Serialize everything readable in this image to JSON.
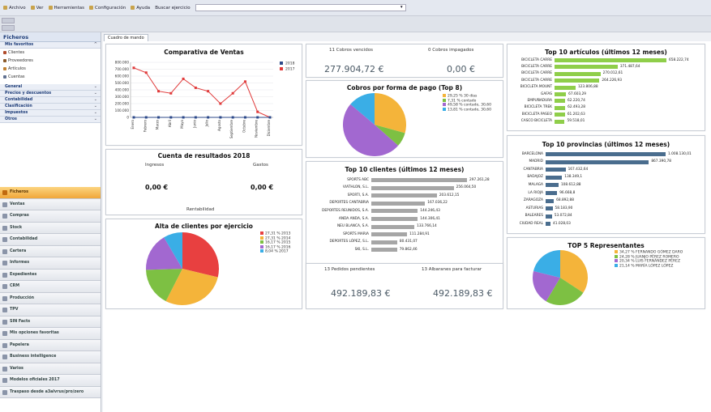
{
  "menu": {
    "archivo": "Archivo",
    "ver": "Ver",
    "herramientas": "Herramientas",
    "configuracion": "Configuración",
    "ayuda": "Ayuda",
    "buscar_label": "Buscar ejercicio",
    "search_value": ""
  },
  "sidebar": {
    "title": "Ficheros",
    "favorites_label": "Mis favoritos",
    "items": [
      {
        "label": "Clientes",
        "color": "#b04a2a"
      },
      {
        "label": "Proveedores",
        "color": "#8a5a2a"
      },
      {
        "label": "Artículos",
        "color": "#c08030"
      },
      {
        "label": "Cuentas",
        "color": "#607090"
      }
    ],
    "sections": [
      "General",
      "Precios y descuentos",
      "Contabilidad",
      "Clasificación",
      "Impuestos",
      "Otros"
    ],
    "modules": [
      {
        "label": "Ficheros",
        "active": true
      },
      {
        "label": "Ventas",
        "active": false
      },
      {
        "label": "Compras",
        "active": false
      },
      {
        "label": "Stock",
        "active": false
      },
      {
        "label": "Contabilidad",
        "active": false
      },
      {
        "label": "Cartera",
        "active": false
      },
      {
        "label": "Informes",
        "active": false
      },
      {
        "label": "Expedientes",
        "active": false
      },
      {
        "label": "CRM",
        "active": false
      },
      {
        "label": "Producción",
        "active": false
      },
      {
        "label": "TPV",
        "active": false
      },
      {
        "label": "SIN Facts",
        "active": false
      },
      {
        "label": "Mis opciones favoritas",
        "active": false
      },
      {
        "label": "Papelera",
        "active": false
      },
      {
        "label": "Business intelligence",
        "active": false
      },
      {
        "label": "Varios",
        "active": false
      },
      {
        "label": "Modelos oficiales 2017",
        "active": false
      },
      {
        "label": "Traspaso desde a3alvrus/pro/zero",
        "active": false
      }
    ]
  },
  "tab_label": "Cuadro de mando",
  "sales": {
    "title": "Comparativa de Ventas",
    "legend": [
      "2018",
      "2017"
    ],
    "colors": {
      "s2018": "#2d4a8a",
      "s2017": "#e03a3a"
    }
  },
  "cobros": {
    "left_label": "11  Cobros vencidos",
    "left_value": "277.904,72 €",
    "right_label": "0  Cobros impagados",
    "right_value": "0,00 €"
  },
  "cobros_pago": {
    "title": "Cobros por forma de pago (Top 8)",
    "legend": [
      {
        "pct": "29,25 %",
        "label": "30 días",
        "color": "#f4b43a"
      },
      {
        "pct": "7,31 %",
        "label": "contado",
        "color": "#7dc043"
      },
      {
        "pct": "49,58 %",
        "label": "contado, 30,60",
        "color": "#a268d0"
      },
      {
        "pct": "13,81 %",
        "label": "contado, 30,60",
        "color": "#3aaee6"
      }
    ]
  },
  "resultados": {
    "title": "Cuenta de resultados 2018",
    "ingresos_label": "Ingresos",
    "gastos_label": "Gastos",
    "ingresos_value": "0,00 €",
    "gastos_value": "0,00 €",
    "rentabilidad_label": "Rentabilidad"
  },
  "top_clientes": {
    "title": "Top 10 clientes (últimos 12 meses)"
  },
  "alta_clientes": {
    "title": "Alta de clientes por ejercicio",
    "legend": [
      {
        "pct": "27,31 %",
        "label": "2013",
        "color": "#e84040"
      },
      {
        "pct": "27,31 %",
        "label": "2014",
        "color": "#f4b43a"
      },
      {
        "pct": "16,17 %",
        "label": "2015",
        "color": "#7dc043"
      },
      {
        "pct": "16,17 %",
        "label": "2016",
        "color": "#a268d0"
      },
      {
        "pct": "8,04 %",
        "label": "2017",
        "color": "#3aaee6"
      }
    ]
  },
  "pedidos": {
    "left_label": "13  Pedidos pendientes",
    "left_value": "492.189,83 €",
    "right_label": "13  Albaranes para facturar",
    "right_value": "492.189,83 €"
  },
  "top_articulos": {
    "title": "Top 10 artículos (últimos 12 meses)"
  },
  "top_provincias": {
    "title": "Top 10 provincias (últimos 12 meses)"
  },
  "representantes": {
    "title": "TOP 5 Representantes",
    "legend": [
      {
        "pct": "34,27 %",
        "label": "FERNANDO GÓMEZ DARO",
        "color": "#f4b43a"
      },
      {
        "pct": "24,28 %",
        "label": "JUANJO PÉREZ ROMERO",
        "color": "#7dc043"
      },
      {
        "pct": "20,34 %",
        "label": "LUIS FERNÁNDEZ PÉREZ",
        "color": "#a268d0"
      },
      {
        "pct": "21,14 %",
        "label": "MARÍA LÓPEZ LÓPEZ",
        "color": "#3aaee6"
      }
    ]
  },
  "chart_data": [
    {
      "type": "line",
      "title": "Comparativa de Ventas",
      "categories": [
        "Enero",
        "Febrero",
        "Marzo",
        "Abril",
        "Mayo",
        "Junio",
        "Julio",
        "Agosto",
        "Septiembre",
        "Octubre",
        "Noviembre",
        "Diciembre"
      ],
      "ylim": [
        0,
        800000
      ],
      "yticks": [
        "800.000",
        "700.000",
        "600.000",
        "500.000",
        "400.000",
        "300.000",
        "200.000",
        "100.000",
        "0"
      ],
      "series": [
        {
          "name": "2018",
          "values": [
            0,
            0,
            0,
            0,
            0,
            0,
            0,
            0,
            0,
            0,
            0,
            0
          ]
        },
        {
          "name": "2017",
          "values": [
            720000,
            650000,
            380000,
            350000,
            560000,
            430000,
            380000,
            200000,
            350000,
            520000,
            80000,
            0
          ]
        }
      ],
      "legend": "right"
    },
    {
      "type": "pie",
      "title": "Cobros por forma de pago (Top 8)",
      "values": [
        29.25,
        7.31,
        49.58,
        13.81
      ]
    },
    {
      "type": "bar",
      "title": "Top 10 clientes (últimos 12 meses)",
      "categories": [
        "SPORTS ABC",
        "VIATHLON, S.L.",
        "SPORTI, S.A.",
        "DEPORTES CANTABRIA",
        "DEPORTES REUNIDOS, S.A.",
        "ANDA ANDA, S.A.",
        "NEU BLANCA, S.A.",
        "SPORTS MARIA",
        "DEPORTES LÓPEZ, S.L.",
        "SKI, S.L."
      ],
      "labels": [
        "297.261,28",
        "256.064,50",
        "203.612,15",
        "167.036,22",
        "144.246,43",
        "144.306,41",
        "133.766,14",
        "111.284,91",
        "80.431,07",
        "79.862,46"
      ],
      "values": [
        297261.28,
        256064.5,
        203612.15,
        167036.22,
        144246.43,
        144306.41,
        133766.14,
        111284.91,
        80431.07,
        79862.46
      ]
    },
    {
      "type": "pie",
      "title": "Alta de clientes por ejercicio",
      "values": [
        27.31,
        27.31,
        16.17,
        16.17,
        8.04
      ]
    },
    {
      "type": "bar",
      "title": "Top 10 artículos (últimos 12 meses)",
      "categories": [
        "BICICLETA CARRE",
        "BICICLETA CARRE",
        "BICICLETA CARRE",
        "BICICLETA CARRE",
        "BICICLETA MOUNT",
        "GAFAS",
        "EMPUÑADURA",
        "BICICLETA TREK",
        "BICICLETA PASEO",
        "CASCO BICICLETA"
      ],
      "labels": [
        "658.222,74",
        "371.487,64",
        "270.012,61",
        "264.226,93",
        "123.806,88",
        "67.603,29",
        "62.220,74",
        "62.493,28",
        "61.202,63",
        "59.518,01"
      ],
      "values": [
        658222.74,
        371487.64,
        270012.61,
        264226.93,
        123806.88,
        67603.29,
        62220.74,
        62493.28,
        61202.63,
        59518.01
      ]
    },
    {
      "type": "bar",
      "title": "Top 10 provincias (últimos 12 meses)",
      "categories": [
        "BARCELONA",
        "MADRID",
        "CANTABRIA",
        "BADAJOZ",
        "MALAGA",
        "LA RIOJA",
        "ZARAGOZA",
        "ASTURIAS",
        "BALEARES",
        "CIUDAD REAL"
      ],
      "labels": [
        "1.008.130,01",
        "867.390,78",
        "167.432,64",
        "138.349,1",
        "108.612,88",
        "96.668,8",
        "68.892,88",
        "58.183,90",
        "53.072,84",
        "41.028,03"
      ],
      "values": [
        1008130.01,
        867390.78,
        167432.64,
        138349.1,
        108612.88,
        96668.8,
        68892.88,
        58183.9,
        53072.84,
        41028.03
      ]
    },
    {
      "type": "pie",
      "title": "TOP 5 Representantes",
      "values": [
        34.27,
        24.28,
        20.34,
        21.14
      ]
    }
  ]
}
